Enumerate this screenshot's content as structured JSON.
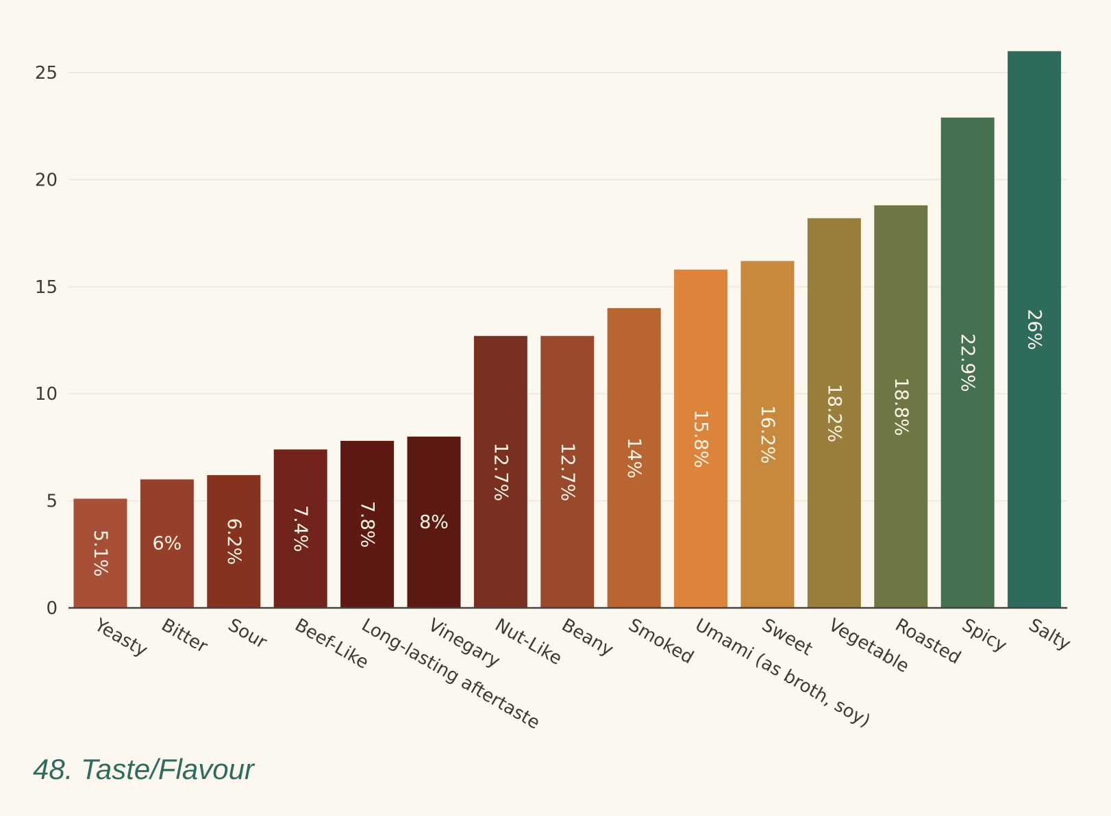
{
  "chart_data": {
    "type": "bar",
    "title": "48. Taste/Flavour",
    "xlabel": "",
    "ylabel": "",
    "ylim": [
      0,
      26
    ],
    "yticks": [
      0,
      5,
      10,
      15,
      20,
      25
    ],
    "grid": true,
    "categories": [
      "Yeasty",
      "Bitter",
      "Sour",
      "Beef-Like",
      "Long-lasting aftertaste",
      "Vinegary",
      "Nut-Like",
      "Beany",
      "Smoked",
      "Umami (as broth, soy)",
      "Sweet",
      "Vegetable",
      "Roasted",
      "Spicy",
      "Salty"
    ],
    "values": [
      5.1,
      6,
      6.2,
      7.4,
      7.8,
      8,
      12.7,
      12.7,
      14,
      15.8,
      16.2,
      18.2,
      18.8,
      22.9,
      26
    ],
    "data_labels": [
      "5.1%",
      "6%",
      "6.2%",
      "7.4%",
      "7.8%",
      "8%",
      "12.7%",
      "12.7%",
      "14%",
      "15.8%",
      "16.2%",
      "18.2%",
      "18.8%",
      "22.9%",
      "26%"
    ],
    "colors": [
      "#a84f38",
      "#96402c",
      "#85321f",
      "#72241c",
      "#5e1a12",
      "#5a1911",
      "#7a3020",
      "#9a4a2c",
      "#b96532",
      "#dc843c",
      "#c8893e",
      "#9a7f3c",
      "#6e7744",
      "#467150",
      "#2f6b5c"
    ]
  }
}
